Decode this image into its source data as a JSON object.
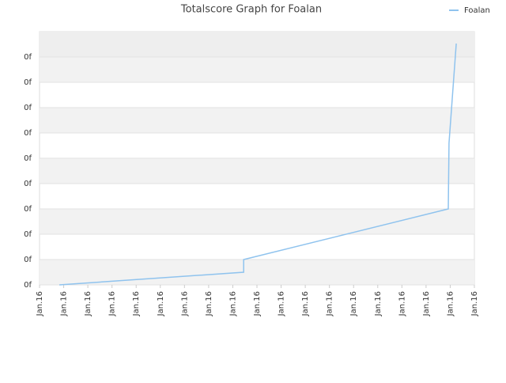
{
  "chart_data": {
    "type": "line",
    "title": "Totalscore Graph for Foalan",
    "x": [
      0.82,
      8.45,
      8.45,
      16.92,
      16.95,
      17.25
    ],
    "series": [
      {
        "name": "Foalan",
        "color": "#8fc3ee",
        "values": [
          0,
          0.5,
          1,
          3,
          5.6,
          9.53
        ]
      }
    ],
    "xlim": [
      0,
      18
    ],
    "xticks": [
      {
        "value": 0,
        "label": "Jan.16"
      },
      {
        "value": 1,
        "label": "Jan.16"
      },
      {
        "value": 2,
        "label": "Jan.16"
      },
      {
        "value": 3,
        "label": "Jan.16"
      },
      {
        "value": 4,
        "label": "Jan.16"
      },
      {
        "value": 5,
        "label": "Jan.16"
      },
      {
        "value": 6,
        "label": "Jan.16"
      },
      {
        "value": 7,
        "label": "Jan.16"
      },
      {
        "value": 8,
        "label": "Jan.16"
      },
      {
        "value": 9,
        "label": "Jan.16"
      },
      {
        "value": 10,
        "label": "Jan.16"
      },
      {
        "value": 11,
        "label": "Jan.16"
      },
      {
        "value": 12,
        "label": "Jan.16"
      },
      {
        "value": 13,
        "label": "Jan.16"
      },
      {
        "value": 14,
        "label": "Jan.16"
      },
      {
        "value": 15,
        "label": "Jan.16"
      },
      {
        "value": 16,
        "label": "Jan.16"
      },
      {
        "value": 17,
        "label": "Jan.16"
      },
      {
        "value": 18,
        "label": "Jan.16"
      }
    ],
    "ylim": [
      0,
      10
    ],
    "yticks": [
      {
        "value": 0,
        "label": "0f"
      },
      {
        "value": 1,
        "label": "0f"
      },
      {
        "value": 2,
        "label": "0f"
      },
      {
        "value": 3,
        "label": "0f"
      },
      {
        "value": 4,
        "label": "0f"
      },
      {
        "value": 5,
        "label": "0f"
      },
      {
        "value": 6,
        "label": "0f"
      },
      {
        "value": 7,
        "label": "0f"
      },
      {
        "value": 8,
        "label": "0f"
      },
      {
        "value": 9,
        "label": "0f"
      }
    ],
    "grid": true,
    "legend": "top-right"
  }
}
